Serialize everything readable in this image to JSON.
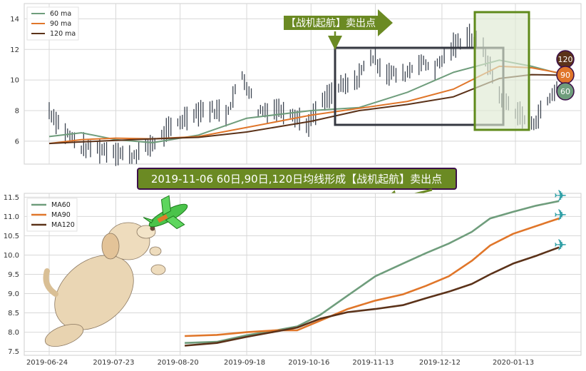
{
  "colors": {
    "ma60": "#6f9d7c",
    "ma90": "#e0762a",
    "ma120": "#5b3219",
    "candle": "#3c4450",
    "banner_bg": "#6b8a23",
    "banner_border": "#3c0f4a",
    "rect_dark": "#353841",
    "rect_green": "#5f8a1a",
    "rect_green_fill": "#dfe9d2",
    "grid": "#d8d8d8"
  },
  "top_chart": {
    "y_ticks": [
      "6",
      "8",
      "10",
      "12",
      "14"
    ],
    "legend": [
      "60 ma",
      "90 ma",
      "120 ma"
    ],
    "arrow_label": "【战机起航】卖出点",
    "badges": [
      "120",
      "90",
      "60"
    ]
  },
  "banner": {
    "text": "2019-11-06 60日,90日,120日均线形成【战机起航】卖出点"
  },
  "chart_data": [
    {
      "type": "line",
      "panel": "top",
      "ylim": [
        4.5,
        15
      ],
      "x_range": [
        "2019-06-24",
        "2020-02-07"
      ],
      "grid": true,
      "legend_position": "top-left",
      "candles_close_approx": [
        [
          "2019-06-24",
          8.0
        ],
        [
          "2019-07-01",
          6.6
        ],
        [
          "2019-07-08",
          5.6
        ],
        [
          "2019-07-15",
          5.5
        ],
        [
          "2019-07-22",
          5.4
        ],
        [
          "2019-07-29",
          5.0
        ],
        [
          "2019-08-05",
          5.5
        ],
        [
          "2019-08-12",
          6.3
        ],
        [
          "2019-08-19",
          7.2
        ],
        [
          "2019-08-26",
          7.9
        ],
        [
          "2019-09-02",
          8.1
        ],
        [
          "2019-09-09",
          7.8
        ],
        [
          "2019-09-16",
          10.3
        ],
        [
          "2019-09-23",
          8.0
        ],
        [
          "2019-09-30",
          8.1
        ],
        [
          "2019-10-07",
          8.0
        ],
        [
          "2019-10-14",
          7.0
        ],
        [
          "2019-10-21",
          8.5
        ],
        [
          "2019-10-28",
          9.5
        ],
        [
          "2019-11-04",
          9.8
        ],
        [
          "2019-11-11",
          11.6
        ],
        [
          "2019-11-18",
          10.5
        ],
        [
          "2019-11-25",
          10.3
        ],
        [
          "2019-12-02",
          11.2
        ],
        [
          "2019-12-09",
          10.8
        ],
        [
          "2019-12-16",
          12.0
        ],
        [
          "2019-12-23",
          13.0
        ],
        [
          "2019-12-30",
          12.0
        ],
        [
          "2020-01-06",
          9.0
        ],
        [
          "2020-01-13",
          8.0
        ],
        [
          "2020-01-20",
          7.0
        ],
        [
          "2020-02-03",
          10.2
        ]
      ],
      "series": [
        {
          "name": "60 ma",
          "x": [
            "2019-06-24",
            "2019-07-08",
            "2019-07-23",
            "2019-08-08",
            "2019-08-28",
            "2019-09-18",
            "2019-10-16",
            "2019-11-06",
            "2019-11-27",
            "2019-12-17",
            "2020-01-06",
            "2020-01-20",
            "2020-02-07"
          ],
          "values": [
            6.3,
            6.55,
            6.1,
            5.9,
            6.4,
            7.5,
            8.0,
            8.2,
            9.2,
            10.5,
            11.3,
            10.9,
            10.2
          ]
        },
        {
          "name": "90 ma",
          "x": [
            "2019-06-24",
            "2019-07-08",
            "2019-07-23",
            "2019-08-08",
            "2019-08-28",
            "2019-09-18",
            "2019-10-16",
            "2019-11-06",
            "2019-11-27",
            "2019-12-17",
            "2020-01-06",
            "2020-01-20",
            "2020-02-07"
          ],
          "values": [
            5.85,
            6.1,
            6.2,
            6.15,
            6.3,
            6.9,
            7.7,
            8.15,
            8.6,
            9.4,
            10.9,
            10.8,
            10.3
          ]
        },
        {
          "name": "120 ma",
          "x": [
            "2019-06-24",
            "2019-07-08",
            "2019-07-23",
            "2019-08-08",
            "2019-08-28",
            "2019-09-18",
            "2019-10-16",
            "2019-11-06",
            "2019-11-27",
            "2019-12-17",
            "2020-01-06",
            "2020-01-20",
            "2020-02-07"
          ],
          "values": [
            5.85,
            5.95,
            6.05,
            6.15,
            6.25,
            6.6,
            7.3,
            8.0,
            8.4,
            8.9,
            10.1,
            10.35,
            10.3
          ]
        }
      ]
    },
    {
      "type": "line",
      "panel": "bottom",
      "ylim": [
        7.4,
        11.6
      ],
      "y_ticks": [
        "7.5",
        "8.0",
        "8.5",
        "9.0",
        "9.5",
        "10.0",
        "10.5",
        "11.0",
        "11.5"
      ],
      "x_ticks": [
        "2019-06-24",
        "2019-07-23",
        "2019-08-20",
        "2019-09-18",
        "2019-10-16",
        "2019-11-13",
        "2019-12-12",
        "2020-01-13"
      ],
      "grid": true,
      "legend_position": "top-left",
      "series": [
        {
          "name": "MA60",
          "x": [
            "2019-08-22",
            "2019-09-05",
            "2019-09-18",
            "2019-10-01",
            "2019-10-10",
            "2019-10-20",
            "2019-11-01",
            "2019-11-13",
            "2019-11-25",
            "2019-12-05",
            "2019-12-15",
            "2019-12-25",
            "2020-01-02",
            "2020-01-12",
            "2020-01-22",
            "2020-02-01"
          ],
          "values": [
            7.72,
            7.75,
            7.92,
            8.05,
            8.15,
            8.45,
            8.95,
            9.45,
            9.78,
            10.05,
            10.3,
            10.6,
            10.95,
            11.12,
            11.28,
            11.4
          ]
        },
        {
          "name": "MA90",
          "x": [
            "2019-08-22",
            "2019-09-05",
            "2019-09-18",
            "2019-10-01",
            "2019-10-10",
            "2019-10-20",
            "2019-11-01",
            "2019-11-13",
            "2019-11-25",
            "2019-12-05",
            "2019-12-15",
            "2019-12-25",
            "2020-01-02",
            "2020-01-12",
            "2020-01-22",
            "2020-02-01"
          ],
          "values": [
            7.9,
            7.93,
            8.0,
            8.05,
            8.05,
            8.3,
            8.6,
            8.82,
            8.98,
            9.2,
            9.45,
            9.85,
            10.25,
            10.55,
            10.75,
            10.95
          ]
        },
        {
          "name": "MA120",
          "x": [
            "2019-08-22",
            "2019-09-05",
            "2019-09-18",
            "2019-10-01",
            "2019-10-10",
            "2019-10-20",
            "2019-11-01",
            "2019-11-13",
            "2019-11-25",
            "2019-12-05",
            "2019-12-15",
            "2019-12-25",
            "2020-01-02",
            "2020-01-12",
            "2020-01-22",
            "2020-02-01"
          ],
          "values": [
            7.65,
            7.72,
            7.88,
            8.02,
            8.12,
            8.35,
            8.52,
            8.6,
            8.7,
            8.88,
            9.05,
            9.25,
            9.5,
            9.78,
            9.98,
            10.2
          ]
        }
      ]
    }
  ]
}
